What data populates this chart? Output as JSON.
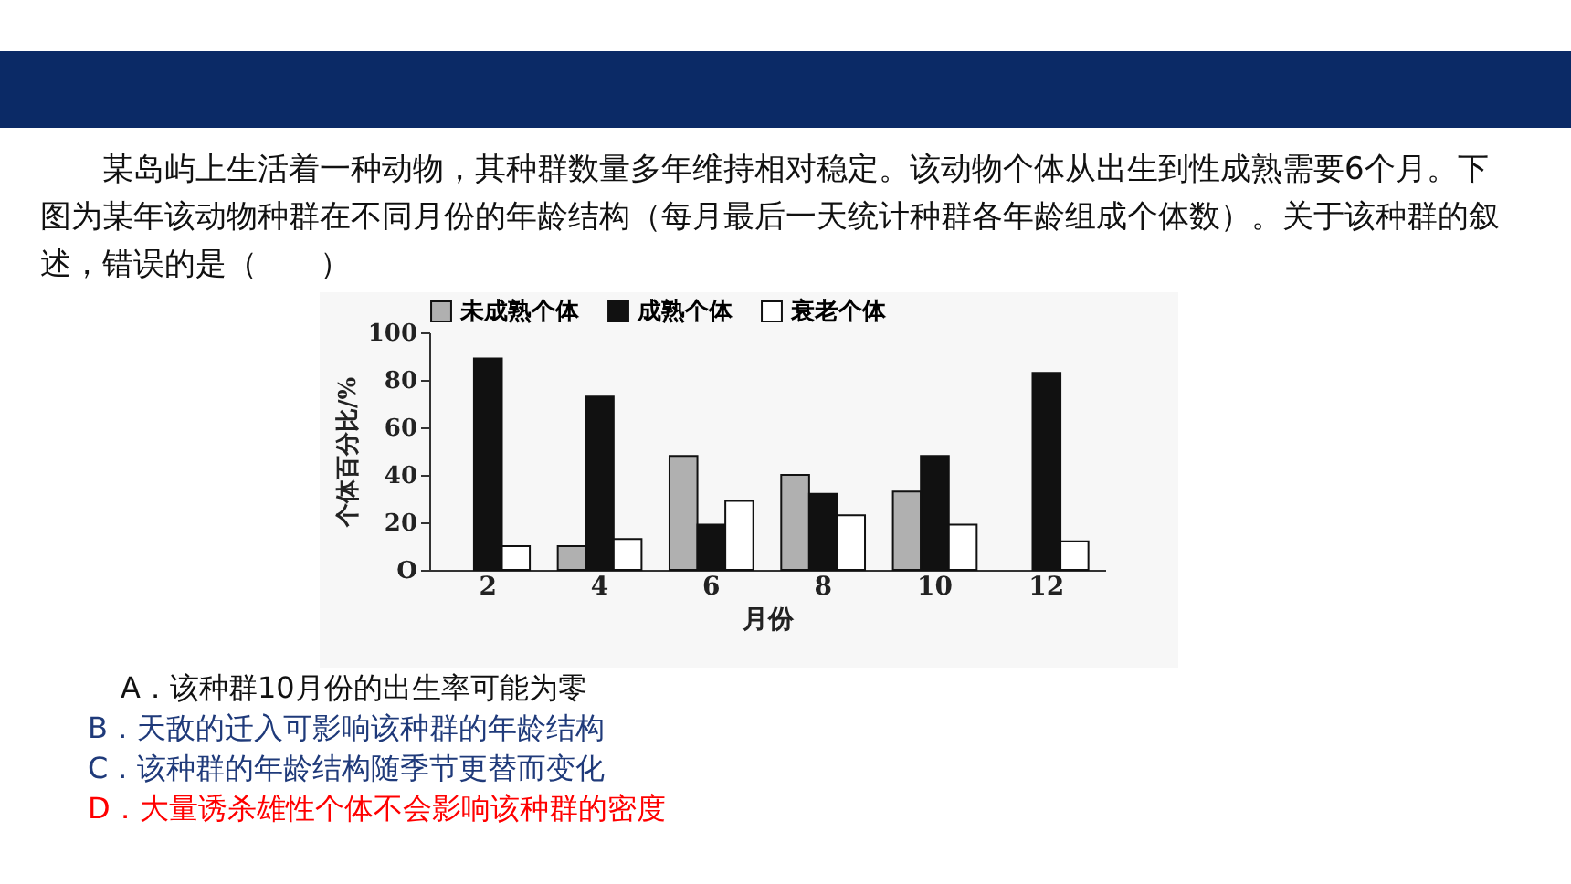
{
  "chart_data": {
    "type": "bar",
    "title": "某岛屿上生活着一种动物，其种群数量多年维持相对稳定。该动物个体从出生到性成熟需要6个月。下图为某年该动物种群在不同月份的年龄结构（每月最后一天统计种群各年龄组成个体数）。关于该种群的叙述，错误的是（　　）",
    "xlabel": "月份",
    "ylabel": "个体百分比/%",
    "categories": [
      "2",
      "4",
      "6",
      "8",
      "10",
      "12"
    ],
    "series": [
      {
        "name": "未成熟个体",
        "color": "#b0b0b0",
        "values": [
          null,
          10,
          48,
          40,
          33,
          null
        ]
      },
      {
        "name": "成熟个体",
        "color": "#111111",
        "values": [
          89,
          73,
          19,
          32,
          48,
          83
        ]
      },
      {
        "name": "衰老个体",
        "color": "#ffffff",
        "values": [
          10,
          13,
          29,
          23,
          19,
          12
        ]
      }
    ],
    "ylim": [
      0,
      100
    ],
    "yticks": [
      {
        "value": 0,
        "label": "O"
      },
      20,
      40,
      60,
      80,
      100
    ],
    "grid": false,
    "legend": "top",
    "annotations": [
      "A．该种群10月份的出生率可能为零",
      "B．天敌的迁入可影响该种群的年龄结构",
      "C．该种群的年龄结构随季节更替而变化",
      "D．大量诱杀雄性个体不会影响该种群的密度"
    ]
  }
}
